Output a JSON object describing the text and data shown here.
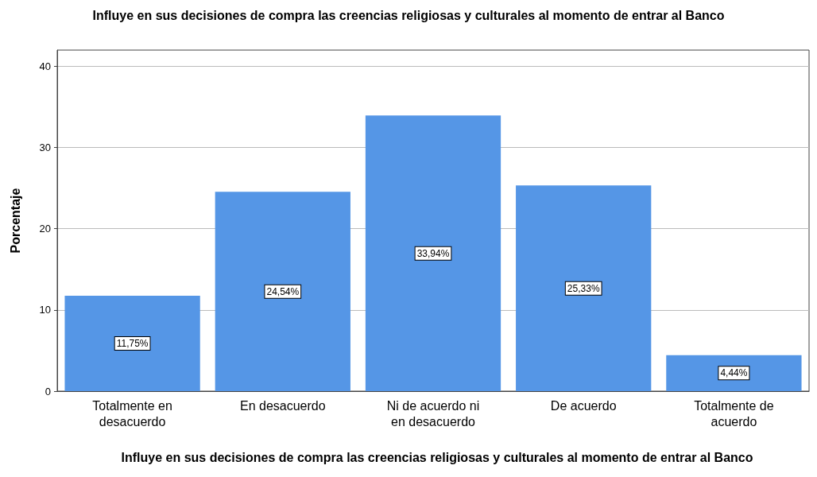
{
  "chart_data": {
    "type": "bar",
    "title": "Influye en sus decisiones de compra las creencias religiosas y culturales al momento de entrar al Banco",
    "xlabel": "Influye en sus decisiones de compra las creencias religiosas y culturales al momento de entrar al Banco",
    "ylabel": "Porcentaje",
    "categories": [
      "Totalmente en\ndesacuerdo",
      "En desacuerdo",
      "Ni de acuerdo ni\nen desacuerdo",
      "De acuerdo",
      "Totalmente de\nacuerdo"
    ],
    "values": [
      11.75,
      24.54,
      33.94,
      25.33,
      4.44
    ],
    "value_labels": [
      "11,75%",
      "24,54%",
      "33,94%",
      "25,33%",
      "4,44%"
    ],
    "color": "#5596e6",
    "ylim": [
      0,
      42
    ],
    "yticks": [
      0,
      10,
      20,
      30,
      40
    ],
    "grid": "y"
  }
}
